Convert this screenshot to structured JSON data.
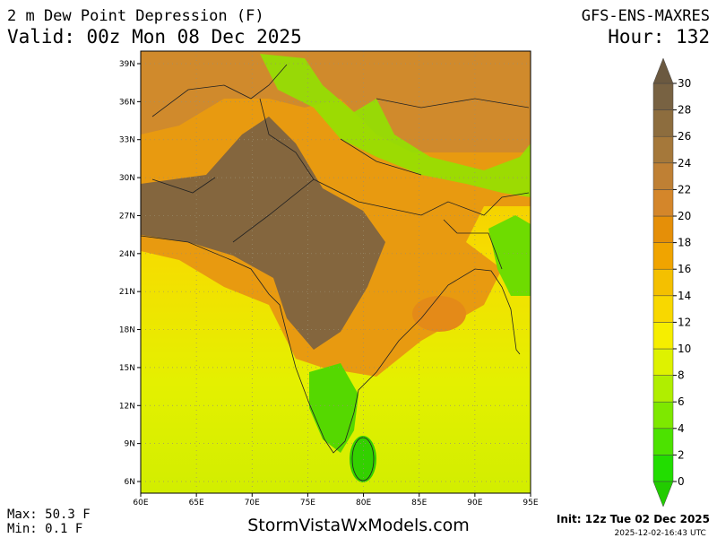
{
  "header": {
    "title": "2 m Dew Point Depression (F)",
    "valid": "Valid: 00z Mon 08 Dec 2025",
    "model": "GFS-ENS-MAXRES",
    "hour": "Hour: 132"
  },
  "map": {
    "lat_labels": [
      "39N",
      "36N",
      "33N",
      "30N",
      "27N",
      "24N",
      "21N",
      "18N",
      "15N",
      "12N",
      "9N",
      "6N"
    ],
    "lon_labels": [
      "60E",
      "65E",
      "70E",
      "75E",
      "80E",
      "85E",
      "90E",
      "95E"
    ]
  },
  "legend": {
    "ticks": [
      30,
      28,
      26,
      24,
      22,
      20,
      18,
      16,
      14,
      12,
      10,
      8,
      6,
      4,
      2,
      0
    ],
    "colors": [
      "#22dd00",
      "#4ce200",
      "#7ee800",
      "#b0ee00",
      "#def200",
      "#f6ee00",
      "#f8d800",
      "#f4c000",
      "#f0a400",
      "#e58f08",
      "#d4862a",
      "#bf8034",
      "#a5783a",
      "#8d6d3e",
      "#786242"
    ],
    "top_color": "#6b5940",
    "bottom_color": "#22cc00"
  },
  "footer": {
    "max": "Max: 50.3 F",
    "min": "Min: 0.1 F",
    "site": "StormVistaWxModels.com",
    "init": "Init: 12z Tue 02 Dec 2025",
    "timestamp": "2025-12-02-16:43",
    "utc": "UTC"
  }
}
